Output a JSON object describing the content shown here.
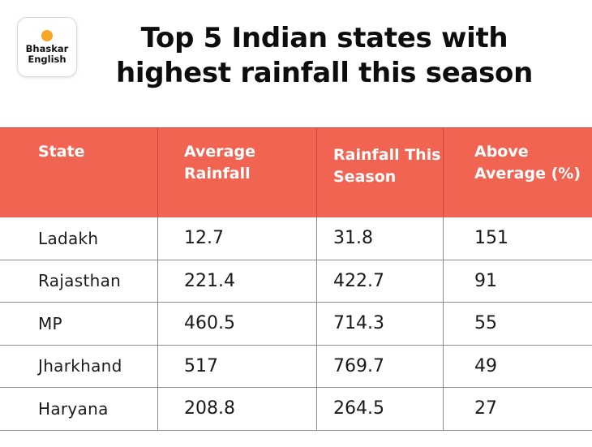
{
  "logo": {
    "line1": "Bhaskar",
    "line2": "English"
  },
  "title": "Top 5 Indian states with highest rainfall this season",
  "chart_data": {
    "type": "table",
    "title": "Top 5 Indian states with highest rainfall this season",
    "columns": [
      "State",
      "Average Rainfall",
      "Rainfall This Season",
      "Above Average (%)"
    ],
    "rows": [
      [
        "Ladakh",
        "12.7",
        "31.8",
        "151"
      ],
      [
        "Rajasthan",
        "221.4",
        "422.7",
        "91"
      ],
      [
        "MP",
        "460.5",
        "714.3",
        "55"
      ],
      [
        "Jharkhand",
        "517",
        "769.7",
        "49"
      ],
      [
        "Haryana",
        "208.8",
        "264.5",
        "27"
      ]
    ]
  },
  "colors": {
    "header_bg": "#f26452",
    "header_text": "#ffffff",
    "logo_sun": "#f5a623"
  }
}
